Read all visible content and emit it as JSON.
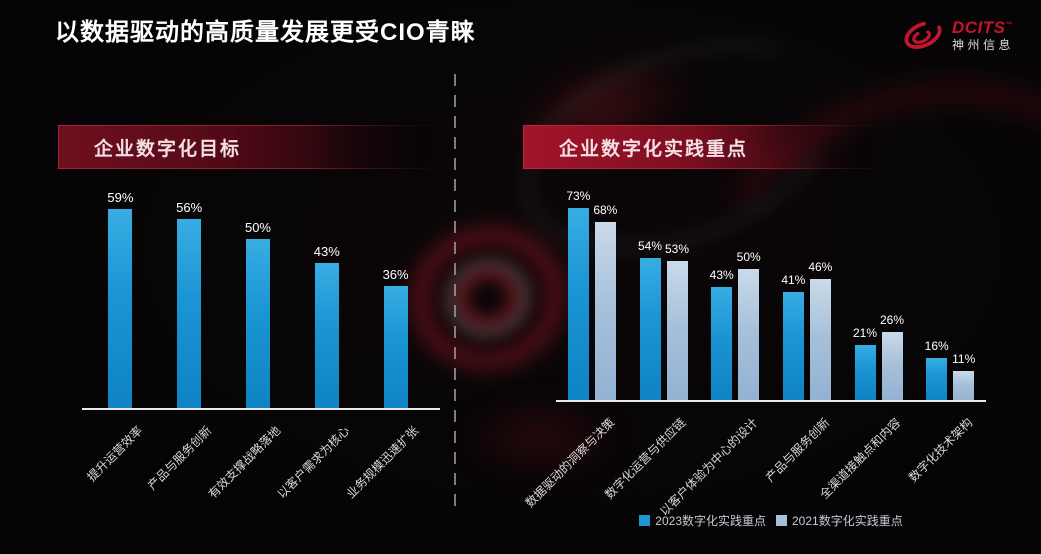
{
  "page": {
    "title": "以数据驱动的高质量发展更受CIO青睐"
  },
  "logo": {
    "brand": "DCITS",
    "trademark": "™",
    "company": "神州信息",
    "brand_color": "#C3152B",
    "icon": "swoosh-icon"
  },
  "panels": {
    "goals": {
      "header": "企业数字化目标"
    },
    "practices": {
      "header": "企业数字化实践重点"
    }
  },
  "legend": [
    {
      "label": "2023数字化实践重点",
      "color": "#1E96D2"
    },
    {
      "label": "2021数字化实践重点",
      "color": "#A6C0DA"
    }
  ],
  "chart_data": [
    {
      "type": "bar",
      "title": "企业数字化目标",
      "categories": [
        "提升运营效率",
        "产品与服务创新",
        "有效支撑战略落地",
        "以客户需求为核心",
        "业务规模迅速扩张"
      ],
      "values": [
        59,
        56,
        50,
        43,
        36
      ],
      "unit": "%",
      "bar_color": "#1E96D2",
      "ylim": [
        0,
        63
      ],
      "grid": false,
      "value_labels": true,
      "category_label_rotation": -45
    },
    {
      "type": "bar",
      "title": "企业数字化实践重点",
      "categories": [
        "数据驱动的洞察与决策",
        "数字化运营与供应链",
        "以客户体验为中心的设计",
        "产品与服务创新",
        "全渠道接触点和内容",
        "数字化技术架构"
      ],
      "series": [
        {
          "name": "2023数字化实践重点",
          "values": [
            73,
            54,
            43,
            41,
            21,
            16
          ],
          "color": "#1E96D2"
        },
        {
          "name": "2021数字化实践重点",
          "values": [
            68,
            53,
            50,
            46,
            26,
            11
          ],
          "color": "#A6C0DA"
        }
      ],
      "unit": "%",
      "ylim": [
        0,
        80
      ],
      "grid": false,
      "value_labels": true,
      "legend_position": "bottom",
      "category_label_rotation": -45
    }
  ]
}
